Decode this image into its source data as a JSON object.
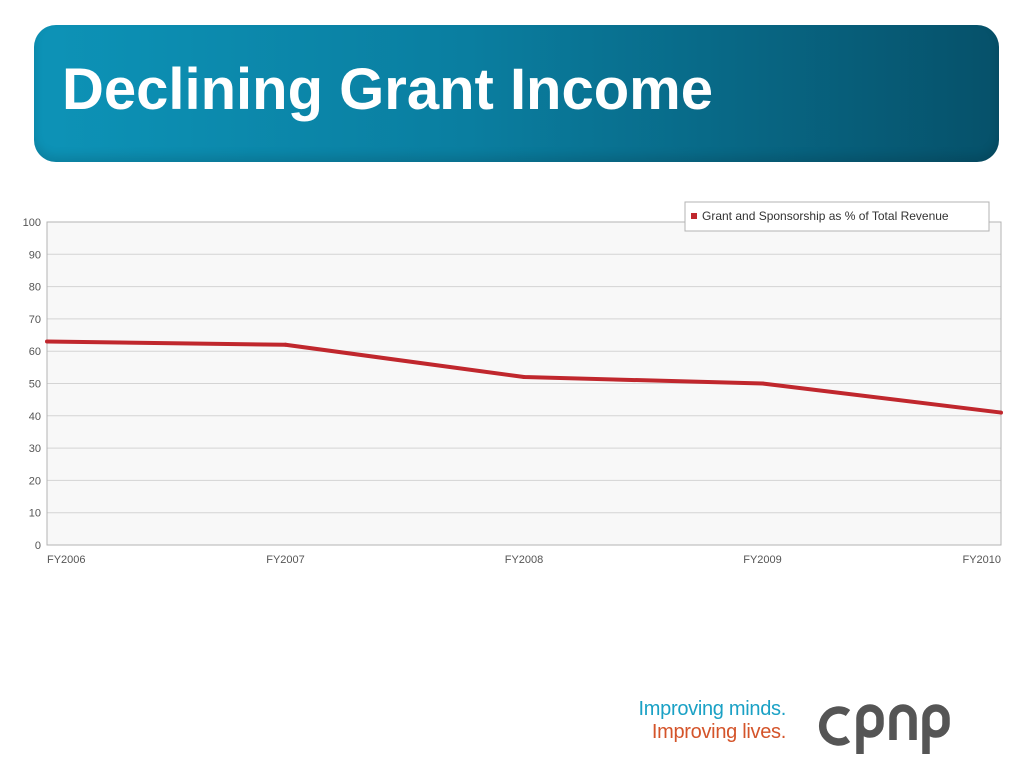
{
  "slide": {
    "title": "Declining Grant Income"
  },
  "chart_data": {
    "type": "line",
    "categories": [
      "FY2006",
      "FY2007",
      "FY2008",
      "FY2009",
      "FY2010"
    ],
    "series": [
      {
        "name": "Grant and Sponsorship as % of Total Revenue",
        "values": [
          63,
          62,
          52,
          50,
          41
        ],
        "color": "#c0272d"
      }
    ],
    "yticks": [
      0,
      10,
      20,
      30,
      40,
      50,
      60,
      70,
      80,
      90,
      100
    ],
    "ylim": [
      0,
      100
    ],
    "grid": true,
    "legend_position": "top-right",
    "title": "",
    "xlabel": "",
    "ylabel": ""
  },
  "logo": {
    "tagline_1": "Improving minds.",
    "tagline_2": "Improving lives.",
    "wordmark": "cpnp",
    "tagline_1_color": "#1aa1c5",
    "tagline_2_color": "#d4542a",
    "wordmark_color": "#555555"
  }
}
